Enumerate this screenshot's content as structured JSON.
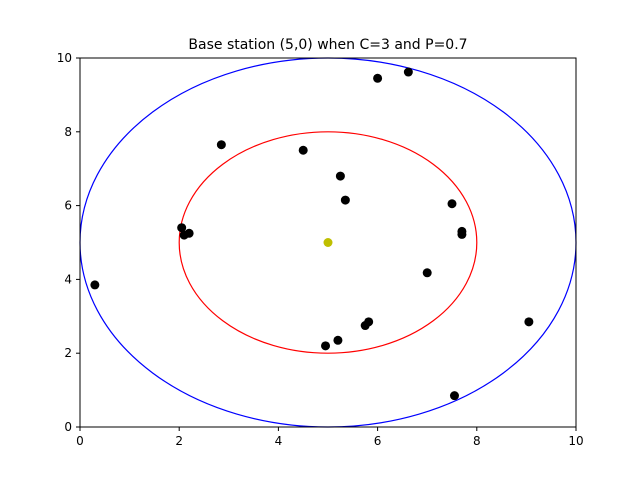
{
  "chart_data": {
    "type": "scatter",
    "title": "Base station (5,0) when C=3 and P=0.7",
    "xlabel": "",
    "ylabel": "",
    "xlim": [
      0,
      10
    ],
    "ylim": [
      0,
      10
    ],
    "xticks": [
      0,
      2,
      4,
      6,
      8,
      10
    ],
    "yticks": [
      0,
      2,
      4,
      6,
      8,
      10
    ],
    "grid": false,
    "center": {
      "x": 5,
      "y": 5,
      "color": "#bfbf00"
    },
    "circles": [
      {
        "name": "inner-circle",
        "cx": 5,
        "cy": 5,
        "r": 3,
        "color": "#ff0000"
      },
      {
        "name": "outer-circle",
        "cx": 5,
        "cy": 5,
        "r": 5,
        "color": "#0000ff"
      }
    ],
    "points_color": "#000000",
    "points": [
      {
        "x": 0.3,
        "y": 3.85
      },
      {
        "x": 2.05,
        "y": 5.4
      },
      {
        "x": 2.1,
        "y": 5.2
      },
      {
        "x": 2.2,
        "y": 5.25
      },
      {
        "x": 2.85,
        "y": 7.65
      },
      {
        "x": 4.5,
        "y": 7.5
      },
      {
        "x": 4.95,
        "y": 2.2
      },
      {
        "x": 5.2,
        "y": 2.35
      },
      {
        "x": 5.25,
        "y": 6.8
      },
      {
        "x": 5.35,
        "y": 6.15
      },
      {
        "x": 5.75,
        "y": 2.75
      },
      {
        "x": 5.82,
        "y": 2.85
      },
      {
        "x": 6.0,
        "y": 9.45
      },
      {
        "x": 6.62,
        "y": 9.62
      },
      {
        "x": 7.0,
        "y": 4.18
      },
      {
        "x": 7.5,
        "y": 6.05
      },
      {
        "x": 7.55,
        "y": 0.85
      },
      {
        "x": 7.7,
        "y": 5.3
      },
      {
        "x": 7.7,
        "y": 5.22
      },
      {
        "x": 9.05,
        "y": 2.85
      }
    ]
  }
}
